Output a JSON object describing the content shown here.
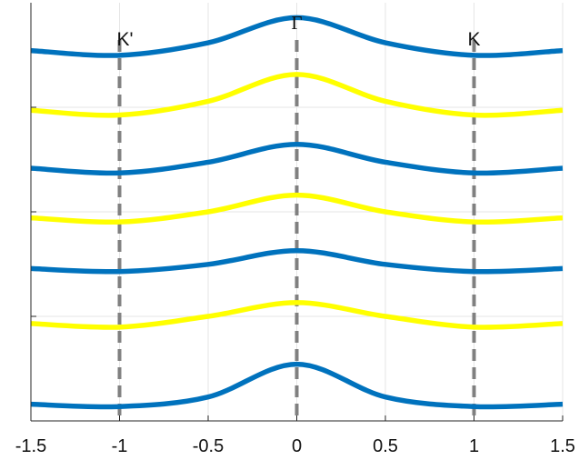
{
  "chart_data": {
    "type": "line",
    "xlim": [
      -1.5,
      1.5
    ],
    "ylim": [
      0,
      7
    ],
    "xticks": [
      -1.5,
      -1,
      -0.5,
      0,
      0.5,
      1,
      1.5
    ],
    "xtick_labels": [
      "-1.5",
      "-1",
      "-0.5",
      "0",
      "0.5",
      "1",
      "1.5"
    ],
    "ytick_labels": [],
    "grid": true,
    "title": "",
    "xlabel": "",
    "ylabel": "",
    "markers": [
      {
        "x": -1,
        "label": "K'"
      },
      {
        "x": 0,
        "label": "Γ"
      },
      {
        "x": 1,
        "label": "K"
      }
    ],
    "colors": {
      "blue": "#0072bd",
      "yellow": "#ffff00",
      "marker_line": "#808080",
      "grid": "#e6e6e6",
      "axis": "#262626"
    },
    "series": [
      {
        "color": "blue",
        "x": [
          -1.5,
          -1.0,
          -0.5,
          0.0,
          0.5,
          1.0,
          1.5
        ],
        "y": [
          6.2,
          6.12,
          6.33,
          6.75,
          6.33,
          6.12,
          6.2
        ]
      },
      {
        "color": "yellow",
        "x": [
          -1.5,
          -1.0,
          -0.5,
          0.0,
          0.5,
          1.0,
          1.5
        ],
        "y": [
          5.2,
          5.12,
          5.35,
          5.8,
          5.35,
          5.12,
          5.2
        ]
      },
      {
        "color": "blue",
        "x": [
          -1.5,
          -1.0,
          -0.5,
          0.0,
          0.5,
          1.0,
          1.5
        ],
        "y": [
          4.23,
          4.15,
          4.33,
          4.63,
          4.33,
          4.15,
          4.23
        ]
      },
      {
        "color": "yellow",
        "x": [
          -1.5,
          -1.0,
          -0.5,
          0.0,
          0.5,
          1.0,
          1.5
        ],
        "y": [
          3.4,
          3.33,
          3.5,
          3.78,
          3.5,
          3.33,
          3.4
        ]
      },
      {
        "color": "blue",
        "x": [
          -1.5,
          -1.0,
          -0.5,
          0.0,
          0.5,
          1.0,
          1.5
        ],
        "y": [
          2.55,
          2.5,
          2.62,
          2.85,
          2.62,
          2.5,
          2.55
        ]
      },
      {
        "color": "yellow",
        "x": [
          -1.5,
          -1.0,
          -0.5,
          0.0,
          0.5,
          1.0,
          1.5
        ],
        "y": [
          1.63,
          1.57,
          1.75,
          1.98,
          1.75,
          1.57,
          1.63
        ]
      },
      {
        "color": "blue",
        "x": [
          -1.5,
          -1.0,
          -0.5,
          0.0,
          0.5,
          1.0,
          1.5
        ],
        "y": [
          0.28,
          0.24,
          0.4,
          0.95,
          0.4,
          0.24,
          0.28
        ]
      }
    ]
  }
}
